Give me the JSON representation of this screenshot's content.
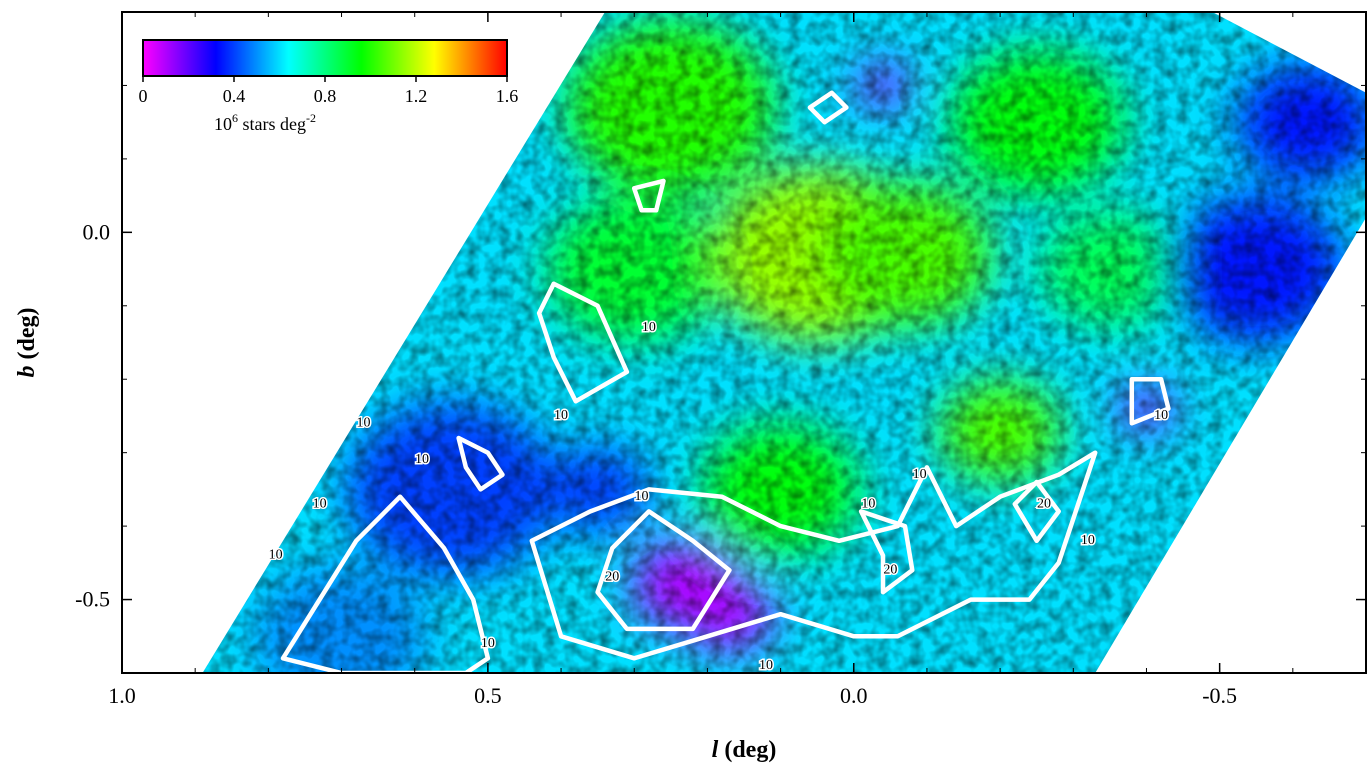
{
  "chart_data": {
    "type": "heatmap",
    "title": "",
    "xlabel_italic": "l",
    "xlabel_unit": " (deg)",
    "ylabel_italic": "b",
    "ylabel_unit": " (deg)",
    "xlim": [
      1.0,
      -0.7
    ],
    "ylim": [
      -0.6,
      0.3
    ],
    "x_ticks": [
      {
        "value": 1.0,
        "label": "1.0"
      },
      {
        "value": 0.5,
        "label": "0.5"
      },
      {
        "value": 0.0,
        "label": "0.0"
      },
      {
        "value": -0.5,
        "label": "-0.5"
      }
    ],
    "y_ticks": [
      {
        "value": 0.0,
        "label": "0.0"
      },
      {
        "value": -0.5,
        "label": "-0.5"
      }
    ],
    "colorbar": {
      "range": [
        0,
        1.6
      ],
      "ticks": [
        {
          "value": 0,
          "label": "0"
        },
        {
          "value": 0.4,
          "label": "0.4"
        },
        {
          "value": 0.8,
          "label": "0.8"
        },
        {
          "value": 1.2,
          "label": "1.2"
        },
        {
          "value": 1.6,
          "label": "1.6"
        }
      ],
      "label_base": "10",
      "label_exp": "6",
      "label_mid": " stars deg",
      "label_exp2": "-2",
      "colors": [
        "#ff00ff",
        "#0000ff",
        "#00ffff",
        "#00ff00",
        "#ffff00",
        "#ff0000"
      ]
    },
    "coverage_polygon": [
      [
        0.89,
        -0.6
      ],
      [
        0.34,
        0.3
      ],
      [
        -0.49,
        0.3
      ],
      [
        -0.7,
        0.19
      ],
      [
        -0.7,
        0.02
      ],
      [
        -0.33,
        -0.6
      ]
    ],
    "density_regions": [
      {
        "l": 0.25,
        "b": 0.17,
        "level": 1.0,
        "size": 0.12
      },
      {
        "l": 0.05,
        "b": -0.03,
        "level": 1.15,
        "size": 0.12
      },
      {
        "l": -0.07,
        "b": -0.03,
        "level": 1.05,
        "size": 0.1
      },
      {
        "l": 0.3,
        "b": -0.05,
        "level": 0.9,
        "size": 0.1
      },
      {
        "l": -0.25,
        "b": 0.15,
        "level": 0.95,
        "size": 0.1
      },
      {
        "l": -0.2,
        "b": -0.27,
        "level": 1.05,
        "size": 0.07
      },
      {
        "l": -0.35,
        "b": -0.05,
        "level": 0.85,
        "size": 0.08
      },
      {
        "l": 0.1,
        "b": -0.35,
        "level": 0.95,
        "size": 0.09
      },
      {
        "l": 0.23,
        "b": -0.48,
        "level": 0.1,
        "size": 0.06
      },
      {
        "l": 0.17,
        "b": -0.52,
        "level": 0.1,
        "size": 0.05
      },
      {
        "l": -0.04,
        "b": 0.2,
        "level": 0.15,
        "size": 0.03
      },
      {
        "l": -0.4,
        "b": -0.24,
        "level": 0.15,
        "size": 0.03
      },
      {
        "l": -0.55,
        "b": -0.05,
        "level": 0.35,
        "size": 0.1
      },
      {
        "l": 0.55,
        "b": -0.35,
        "level": 0.4,
        "size": 0.12
      },
      {
        "l": 0.7,
        "b": -0.55,
        "level": 0.5,
        "size": 0.1
      },
      {
        "l": -0.62,
        "b": 0.15,
        "level": 0.35,
        "size": 0.08
      },
      {
        "l": 0.35,
        "b": -0.35,
        "level": 0.4,
        "size": 0.06
      }
    ],
    "contours": [
      {
        "level": 10,
        "points": [
          [
            0.78,
            -0.58
          ],
          [
            0.73,
            -0.5
          ],
          [
            0.68,
            -0.42
          ],
          [
            0.62,
            -0.36
          ],
          [
            0.56,
            -0.43
          ],
          [
            0.52,
            -0.5
          ],
          [
            0.5,
            -0.58
          ],
          [
            0.53,
            -0.6
          ],
          [
            0.62,
            -0.6
          ],
          [
            0.7,
            -0.6
          ]
        ]
      },
      {
        "level": 10,
        "points": [
          [
            0.54,
            -0.28
          ],
          [
            0.5,
            -0.3
          ],
          [
            0.48,
            -0.33
          ],
          [
            0.51,
            -0.35
          ],
          [
            0.53,
            -0.32
          ]
        ]
      },
      {
        "level": 10,
        "points": [
          [
            0.41,
            -0.07
          ],
          [
            0.35,
            -0.1
          ],
          [
            0.31,
            -0.19
          ],
          [
            0.38,
            -0.23
          ],
          [
            0.41,
            -0.17
          ],
          [
            0.43,
            -0.11
          ]
        ]
      },
      {
        "level": 10,
        "points": [
          [
            0.3,
            0.06
          ],
          [
            0.26,
            0.07
          ],
          [
            0.27,
            0.03
          ],
          [
            0.29,
            0.03
          ]
        ]
      },
      {
        "level": 10,
        "points": [
          [
            0.44,
            -0.42
          ],
          [
            0.36,
            -0.38
          ],
          [
            0.28,
            -0.35
          ],
          [
            0.18,
            -0.36
          ],
          [
            0.1,
            -0.4
          ],
          [
            0.02,
            -0.42
          ],
          [
            -0.06,
            -0.4
          ],
          [
            -0.1,
            -0.32
          ],
          [
            -0.14,
            -0.4
          ],
          [
            -0.2,
            -0.36
          ],
          [
            -0.28,
            -0.33
          ],
          [
            -0.33,
            -0.3
          ],
          [
            -0.28,
            -0.45
          ],
          [
            -0.24,
            -0.5
          ],
          [
            -0.16,
            -0.5
          ],
          [
            -0.06,
            -0.55
          ],
          [
            0.0,
            -0.55
          ],
          [
            0.1,
            -0.52
          ],
          [
            0.2,
            -0.55
          ],
          [
            0.3,
            -0.58
          ],
          [
            0.4,
            -0.55
          ]
        ]
      },
      {
        "level": 20,
        "points": [
          [
            0.33,
            -0.43
          ],
          [
            0.28,
            -0.38
          ],
          [
            0.22,
            -0.42
          ],
          [
            0.17,
            -0.46
          ],
          [
            0.22,
            -0.54
          ],
          [
            0.31,
            -0.54
          ],
          [
            0.35,
            -0.49
          ]
        ]
      },
      {
        "level": 20,
        "points": [
          [
            -0.04,
            -0.44
          ],
          [
            -0.01,
            -0.38
          ],
          [
            -0.07,
            -0.4
          ],
          [
            -0.08,
            -0.46
          ],
          [
            -0.04,
            -0.49
          ]
        ]
      },
      {
        "level": 20,
        "points": [
          [
            -0.22,
            -0.37
          ],
          [
            -0.25,
            -0.34
          ],
          [
            -0.28,
            -0.38
          ],
          [
            -0.25,
            -0.42
          ]
        ]
      },
      {
        "level": 10,
        "points": [
          [
            -0.38,
            -0.2
          ],
          [
            -0.42,
            -0.2
          ],
          [
            -0.43,
            -0.24
          ],
          [
            -0.38,
            -0.26
          ]
        ]
      },
      {
        "level": 10,
        "points": [
          [
            0.06,
            0.17
          ],
          [
            0.03,
            0.19
          ],
          [
            0.01,
            0.17
          ],
          [
            0.04,
            0.15
          ]
        ]
      }
    ],
    "contour_labels": [
      {
        "l": 0.79,
        "b": -0.44,
        "text": "10"
      },
      {
        "l": 0.73,
        "b": -0.37,
        "text": "10"
      },
      {
        "l": 0.59,
        "b": -0.31,
        "text": "10"
      },
      {
        "l": 0.67,
        "b": -0.26,
        "text": "10"
      },
      {
        "l": 0.4,
        "b": -0.25,
        "text": "10"
      },
      {
        "l": 0.28,
        "b": -0.13,
        "text": "10"
      },
      {
        "l": 0.5,
        "b": -0.56,
        "text": "10"
      },
      {
        "l": 0.29,
        "b": -0.36,
        "text": "10"
      },
      {
        "l": 0.33,
        "b": -0.47,
        "text": "20"
      },
      {
        "l": 0.12,
        "b": -0.59,
        "text": "10"
      },
      {
        "l": -0.02,
        "b": -0.37,
        "text": "10"
      },
      {
        "l": -0.05,
        "b": -0.46,
        "text": "20"
      },
      {
        "l": -0.09,
        "b": -0.33,
        "text": "10"
      },
      {
        "l": -0.26,
        "b": -0.37,
        "text": "20"
      },
      {
        "l": -0.32,
        "b": -0.42,
        "text": "10"
      },
      {
        "l": -0.42,
        "b": -0.25,
        "text": "10"
      }
    ]
  }
}
